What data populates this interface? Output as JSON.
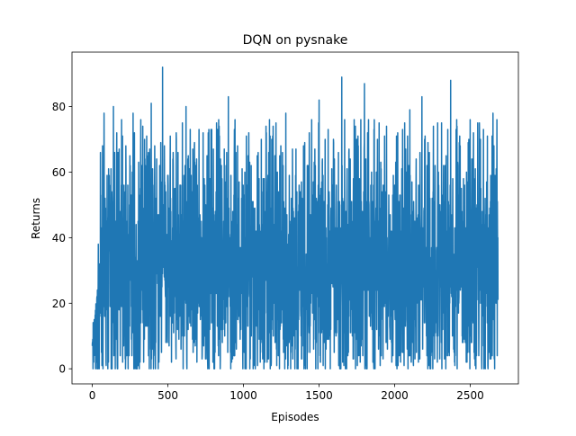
{
  "chart_data": {
    "type": "line",
    "title": "DQN on pysnake",
    "xlabel": "Episodes",
    "ylabel": "Returns",
    "xlim": [
      -134,
      2818
    ],
    "ylim": [
      -4.6,
      96.6
    ],
    "xticks": [
      0,
      500,
      1000,
      1500,
      2000,
      2500
    ],
    "xtick_labels": [
      "0",
      "500",
      "1000",
      "1500",
      "2000",
      "2500"
    ],
    "yticks": [
      0,
      20,
      40,
      60,
      80
    ],
    "ytick_labels": [
      "0",
      "20",
      "40",
      "60",
      "80"
    ],
    "grid": false,
    "legend": "none",
    "series": [
      {
        "color": "#1f77b4",
        "n_points": 2684,
        "x_start": 0,
        "x_end": 2683,
        "min": 0,
        "max": 92,
        "mean_approx": 32,
        "peaks": [
          {
            "x": 465,
            "y": 92
          },
          {
            "x": 1650,
            "y": 89
          },
          {
            "x": 1800,
            "y": 87
          },
          {
            "x": 2370,
            "y": 88
          },
          {
            "x": 2180,
            "y": 83
          },
          {
            "x": 900,
            "y": 83
          },
          {
            "x": 1500,
            "y": 82
          },
          {
            "x": 390,
            "y": 81
          },
          {
            "x": 140,
            "y": 80
          },
          {
            "x": 620,
            "y": 80
          },
          {
            "x": 78,
            "y": 78
          },
          {
            "x": 270,
            "y": 78
          },
          {
            "x": 1280,
            "y": 78
          },
          {
            "x": 2100,
            "y": 79
          },
          {
            "x": 2650,
            "y": 78
          }
        ]
      }
    ]
  }
}
